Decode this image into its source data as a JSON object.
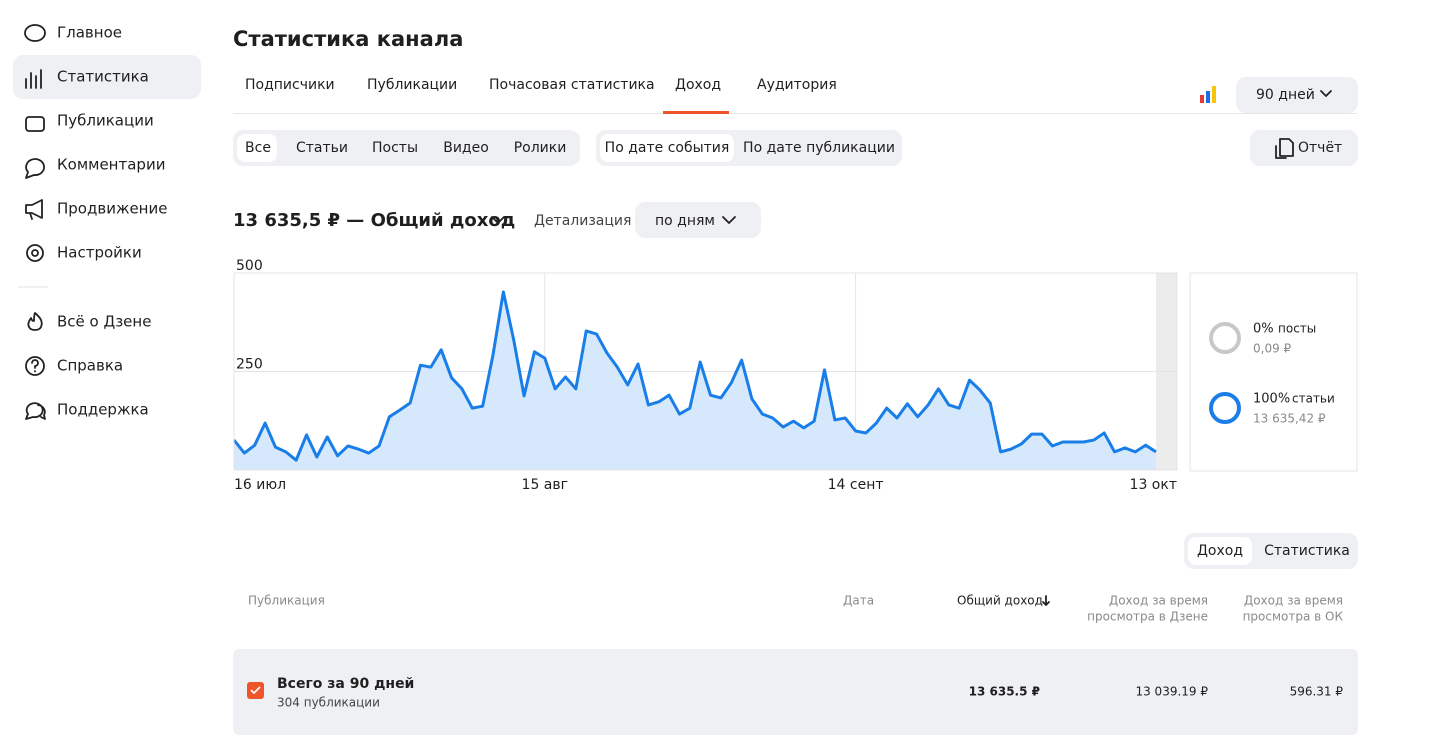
{
  "sidebar": {
    "items": [
      "Главное",
      "Статистика",
      "Публикации",
      "Комментарии",
      "Продвижение",
      "Настройки"
    ],
    "links": [
      "Всё о Дзене",
      "Справка",
      "Поддержка"
    ]
  },
  "header": {
    "title": "Статистика канала",
    "tabs": [
      "Подписчики",
      "Публикации",
      "Почасовая статистика",
      "Доход",
      "Аудитория"
    ],
    "period": "90 дней"
  },
  "filters": {
    "content": [
      "Все",
      "Статьи",
      "Посты",
      "Видео",
      "Ролики"
    ],
    "date": [
      "По дате события",
      "По дате публикации"
    ],
    "report": "Отчёт"
  },
  "summary": {
    "total": "13 635,5 ₽ — Общий доход",
    "detail_label": "Детализация",
    "detail": "по дням"
  },
  "chart_data": {
    "type": "area",
    "categories": [
      "16 июл",
      null,
      null,
      null,
      null,
      null,
      null,
      null,
      null,
      null,
      null,
      null,
      null,
      null,
      null,
      null,
      null,
      null,
      null,
      null,
      null,
      null,
      null,
      null,
      null,
      null,
      null,
      null,
      null,
      null,
      "15 авг",
      null,
      null,
      null,
      null,
      null,
      null,
      null,
      null,
      null,
      null,
      null,
      null,
      null,
      null,
      null,
      null,
      null,
      null,
      null,
      null,
      null,
      null,
      null,
      null,
      null,
      null,
      null,
      null,
      null,
      "14 сент",
      null,
      null,
      null,
      null,
      null,
      null,
      null,
      null,
      null,
      null,
      null,
      null,
      null,
      null,
      null,
      null,
      null,
      null,
      null,
      null,
      null,
      null,
      null,
      null,
      null,
      null,
      null,
      null,
      "13 окт"
    ],
    "values": [
      76,
      43,
      63,
      119,
      58,
      46,
      25,
      89,
      33,
      84,
      36,
      61,
      53,
      43,
      61,
      135,
      152,
      170,
      266,
      261,
      305,
      234,
      206,
      157,
      162,
      292,
      452,
      330,
      188,
      300,
      284,
      206,
      236,
      206,
      353,
      345,
      297,
      261,
      216,
      269,
      165,
      173,
      190,
      142,
      157,
      274,
      190,
      183,
      221,
      279,
      180,
      142,
      132,
      109,
      124,
      107,
      124,
      254,
      127,
      132,
      99,
      94,
      119,
      157,
      132,
      168,
      135,
      165,
      206,
      165,
      157,
      228,
      203,
      170,
      46,
      53,
      66,
      91,
      91,
      61,
      71,
      71,
      71,
      76,
      94,
      46,
      56,
      46,
      63,
      46
    ],
    "color": "#1a7ee8",
    "fill": "#d6e9fc",
    "ylim": [
      0,
      500
    ],
    "yticks": [
      0,
      250,
      500
    ],
    "grid": true
  },
  "breakdown": [
    {
      "percent": "0%",
      "name": "посты",
      "amount": "0,09 ₽"
    },
    {
      "percent": "100%",
      "name": "статьи",
      "amount": "13 635,42 ₽"
    }
  ],
  "view_toggle": [
    "Доход",
    "Статистика"
  ],
  "table": {
    "columns": [
      [
        "Публикация"
      ],
      [
        "Дата"
      ],
      [
        "Общий доход"
      ],
      [
        "Доход за время",
        "просмотра в Дзене"
      ],
      [
        "Доход за время",
        "просмотра в ОК"
      ]
    ],
    "rows": [
      {
        "title": "Всего за 90 дней",
        "subtitle": "304 публикации",
        "cells": [
          "13 635.5 ₽",
          "13 039.19 ₽",
          "596.31 ₽"
        ]
      }
    ]
  }
}
